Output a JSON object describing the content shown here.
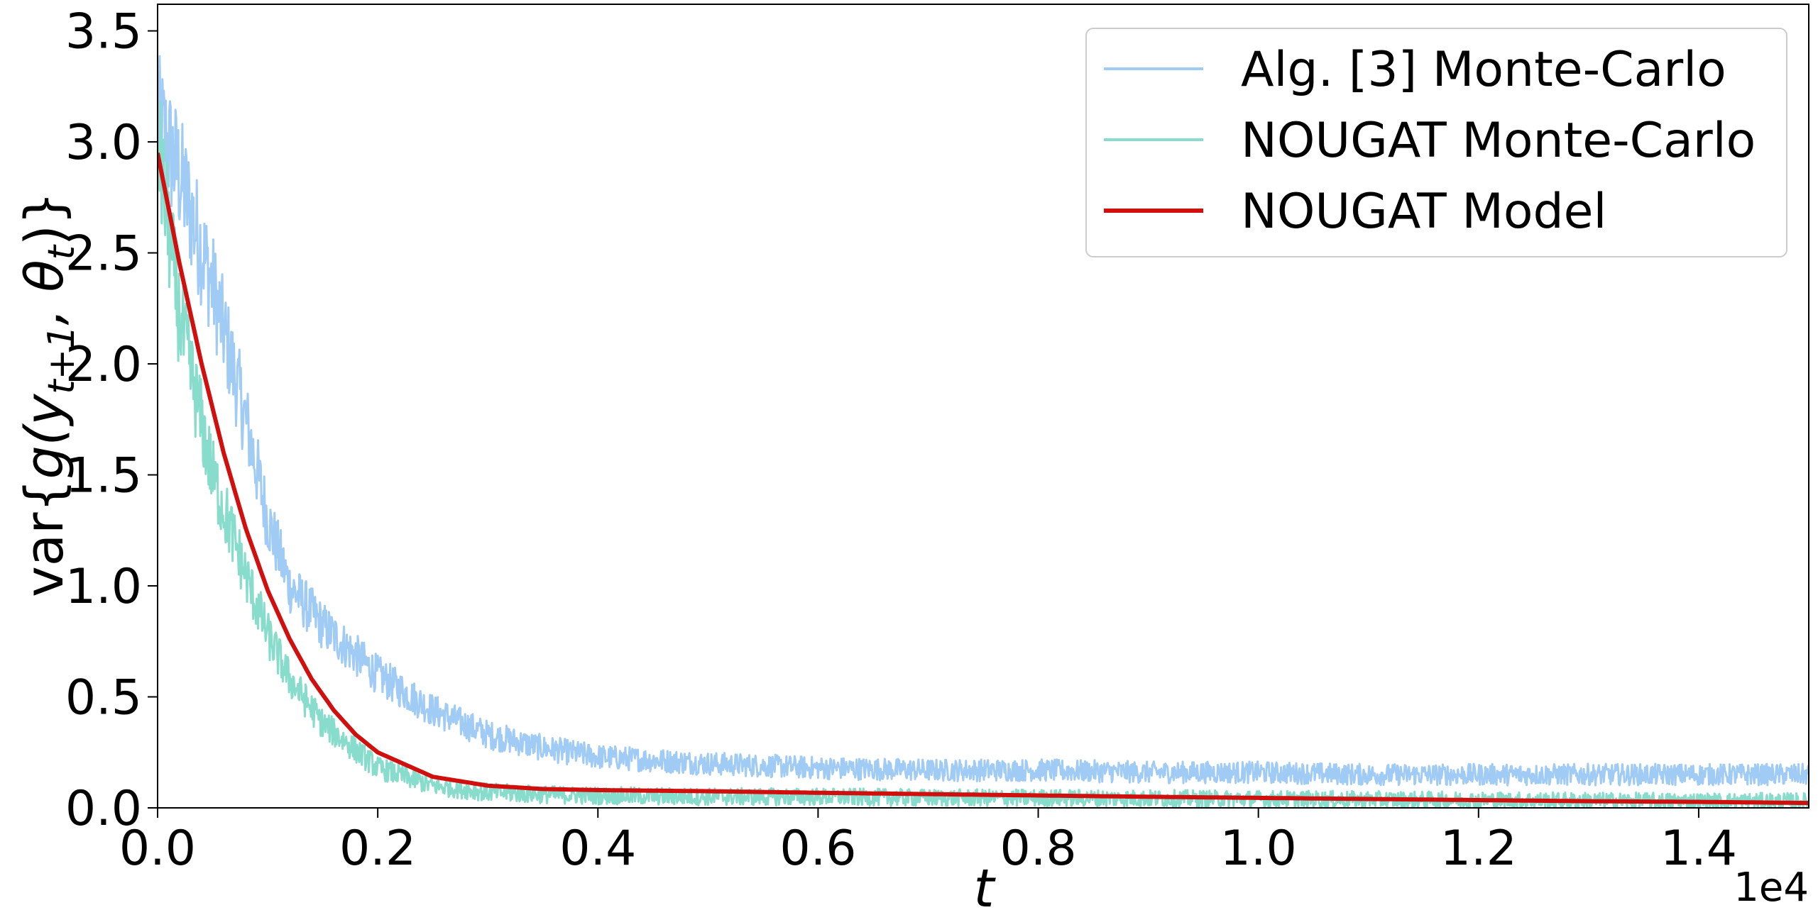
{
  "chart_data": {
    "type": "line",
    "xlabel": "t",
    "ylabel_prefix": "var{",
    "ylabel_math": "g(y",
    "ylabel_sub": "t+1",
    "ylabel_math2": ", θ",
    "ylabel_sub2": "t",
    "ylabel_suffix": ")}",
    "x_offset_text": "1e4",
    "xlim": [
      0,
      1.5
    ],
    "ylim": [
      0,
      3.62
    ],
    "x_ticks": [
      "0.0",
      "0.2",
      "0.4",
      "0.6",
      "0.8",
      "1.0",
      "1.2",
      "1.4"
    ],
    "x_tick_values": [
      0.0,
      0.2,
      0.4,
      0.6,
      0.8,
      1.0,
      1.2,
      1.4
    ],
    "y_ticks": [
      "0.0",
      "0.5",
      "1.0",
      "1.5",
      "2.0",
      "2.5",
      "3.0",
      "3.5"
    ],
    "y_tick_values": [
      0.0,
      0.5,
      1.0,
      1.5,
      2.0,
      2.5,
      3.0,
      3.5
    ],
    "grid": false,
    "legend_position": "top-right",
    "series": [
      {
        "name": "Alg. [3] Monte-Carlo",
        "color": "#a0cbf5",
        "style": "noisy",
        "x": [
          0.0,
          0.02,
          0.05,
          0.08,
          0.1,
          0.12,
          0.15,
          0.2,
          0.25,
          0.3,
          0.35,
          0.4,
          0.5,
          0.6,
          0.7,
          0.8,
          0.9,
          1.0,
          1.1,
          1.2,
          1.3,
          1.4,
          1.5
        ],
        "y": [
          3.1,
          2.85,
          2.35,
          1.75,
          1.3,
          1.0,
          0.82,
          0.6,
          0.44,
          0.33,
          0.27,
          0.23,
          0.2,
          0.18,
          0.17,
          0.17,
          0.16,
          0.16,
          0.15,
          0.15,
          0.15,
          0.15,
          0.15
        ]
      },
      {
        "name": "NOUGAT Monte-Carlo",
        "color": "#88dccb",
        "style": "noisy",
        "x": [
          0.0,
          0.02,
          0.05,
          0.08,
          0.1,
          0.12,
          0.15,
          0.2,
          0.25,
          0.3,
          0.35,
          0.4,
          0.5,
          0.6,
          0.7,
          0.8,
          1.0,
          1.2,
          1.4,
          1.5
        ],
        "y": [
          3.0,
          2.2,
          1.5,
          1.05,
          0.78,
          0.58,
          0.38,
          0.18,
          0.1,
          0.07,
          0.06,
          0.055,
          0.05,
          0.05,
          0.045,
          0.045,
          0.04,
          0.035,
          0.03,
          0.03
        ]
      },
      {
        "name": "NOUGAT Model",
        "color": "#d00f0f",
        "style": "smooth",
        "x": [
          0.0,
          0.02,
          0.04,
          0.06,
          0.08,
          0.1,
          0.12,
          0.14,
          0.16,
          0.18,
          0.2,
          0.25,
          0.3,
          0.35,
          0.4,
          0.5,
          0.6,
          0.7,
          0.8,
          0.9,
          1.0,
          1.1,
          1.2,
          1.3,
          1.4,
          1.5
        ],
        "y": [
          2.95,
          2.45,
          2.0,
          1.6,
          1.26,
          0.98,
          0.76,
          0.58,
          0.44,
          0.33,
          0.25,
          0.14,
          0.1,
          0.085,
          0.08,
          0.075,
          0.068,
          0.062,
          0.056,
          0.05,
          0.045,
          0.04,
          0.035,
          0.03,
          0.027,
          0.022
        ]
      }
    ]
  }
}
